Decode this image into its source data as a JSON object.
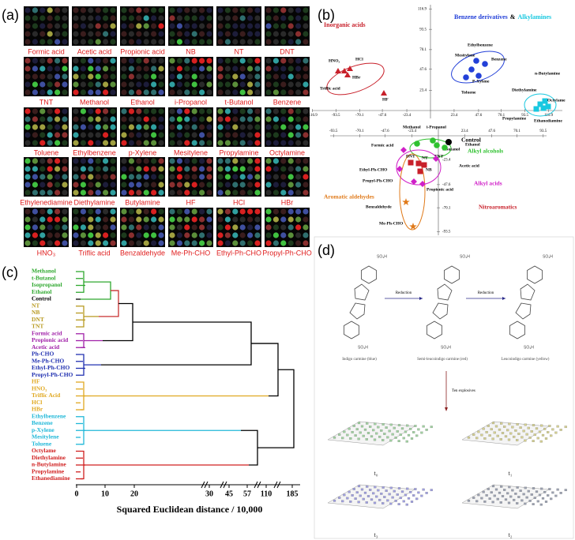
{
  "panel_labels": [
    "(a)",
    "(b)",
    "(c)",
    "(d)"
  ],
  "panel_a": {
    "labels": [
      "Formic acid",
      "Acetic acid",
      "Propionic acid",
      "NB",
      "NT",
      "DNT",
      "TNT",
      "Methanol",
      "Ethanol",
      "i-Propanol",
      "t-Butanol",
      "Benzene",
      "Toluene",
      "Ethylbenzene",
      "p-Xylene",
      "Mesitylene",
      "Propylamine",
      "Octylamine",
      "Ethylenediamine",
      "Diethylamine",
      "Butylamine",
      "HF",
      "HCl",
      "HBr",
      "HNO₃",
      "Triflic acid",
      "Benzaldehyde",
      "Me-Ph-CHO",
      "Ethyl-Ph-CHO",
      "Propyl-Ph-CHO"
    ]
  },
  "panel_b": {
    "groups": [
      {
        "name": "Inorganic acids",
        "color": "#c8202a"
      },
      {
        "name": "Benzene derivatives",
        "color": "#2340d8"
      },
      {
        "name": "Alkylamines",
        "color": "#18c8e0"
      },
      {
        "name": "Alkyl alcohols",
        "color": "#2fc12f"
      },
      {
        "name": "Control",
        "color": "#000000"
      },
      {
        "name": "Alkyl acids",
        "color": "#d020c8"
      },
      {
        "name": "Aromatic aldehydes",
        "color": "#e07a1a"
      },
      {
        "name": "Nitroaromatics",
        "color": "#c8202a"
      }
    ],
    "connector": "&",
    "upper_xticks": [
      -116.9,
      -93.5,
      -70.1,
      -47.6,
      -23.4,
      23.4,
      47.6,
      70.1,
      93.5,
      116.9
    ],
    "upper_yticks": [
      116.9,
      93.5,
      70.1,
      47.6,
      23.4
    ],
    "lower_xticks": [
      -93.5,
      -70.1,
      -47.6,
      -23.4,
      23.4,
      47.6,
      70.1,
      93.5
    ],
    "lower_yticks": [
      -23.4,
      -47.6,
      -70.1,
      -93.5
    ],
    "points": [
      "HNO₃",
      "HCl",
      "HBr",
      "Triflic acid",
      "HF",
      "Ethylbenzene",
      "Mesitylene",
      "Benzene",
      "P-Xylene",
      "Toluene",
      "n-Butylamine",
      "Diethylamine",
      "Octylame",
      "Propylamine",
      "Ethanediamine",
      "Methanol",
      "i-Propanol",
      "Formic acid",
      "t-Butanol",
      "Ethanol",
      "DNT",
      "NT",
      "TNT",
      "NB",
      "Acetic acid",
      "Ethyl-Ph-CHO",
      "Propyl-Ph-CHO",
      "Propionic acid",
      "Benzaldehyde",
      "Me-Ph-CHO"
    ]
  },
  "panel_c": {
    "groups": [
      {
        "color": "#2fa82f",
        "labels": [
          "Methanol",
          "t-Butanol",
          "Isopropanol",
          "Ethanol"
        ]
      },
      {
        "color": "#000000",
        "labels": [
          "Control"
        ]
      },
      {
        "color": "#b89a20",
        "labels": [
          "NT",
          "NB",
          "DNT",
          "TNT"
        ]
      },
      {
        "color": "#a020a8",
        "labels": [
          "Formic acid",
          "Propionic acid",
          "Acetic acid"
        ]
      },
      {
        "color": "#2030b0",
        "labels": [
          "Ph-CHO",
          "Me-Ph-CHO",
          "Ethyl-Ph-CHO",
          "Propyl-Ph-CHO"
        ]
      },
      {
        "color": "#e0a820",
        "labels": [
          "HF",
          "HNO₃",
          "Triflic Acid",
          "HCl",
          "HBr"
        ]
      },
      {
        "color": "#20b8d8",
        "labels": [
          "Ethylbenzene",
          "Benzene",
          "p-Xylene",
          "Mesitylene",
          "Toluene"
        ]
      },
      {
        "color": "#d02020",
        "labels": [
          "Octylame",
          "Diethylamine",
          "n-Butylamine",
          "Propylamine",
          "Ethanediamine"
        ]
      }
    ],
    "xticks": [
      0,
      10,
      20,
      30,
      45,
      57,
      110,
      185
    ],
    "xlabel": "Squared Euclidean distance / 10,000"
  },
  "panel_d": {
    "group": "SO₃H",
    "steps": [
      "Reduction",
      "Reduction"
    ],
    "compounds": [
      "Indigo carmine (blue)",
      "Semi-leucoindigo carmine (red)",
      "Leucoindigo carmine (yellow)"
    ],
    "arrow_label": "Ten explosives",
    "times": [
      "t₀",
      "t₁",
      "t₃",
      "t₂"
    ]
  }
}
